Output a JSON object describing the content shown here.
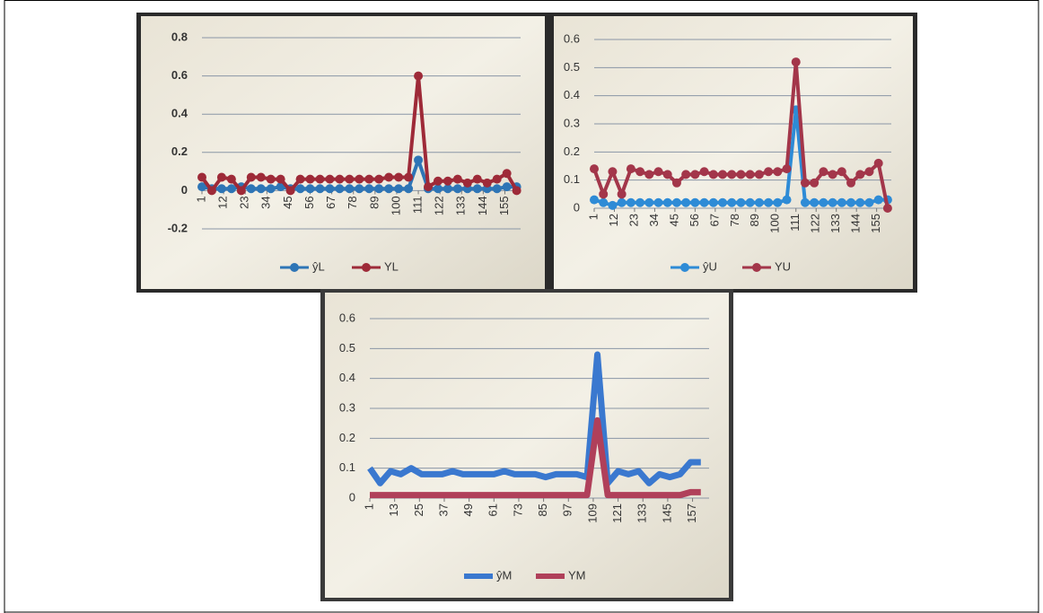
{
  "chart_data": [
    {
      "type": "line",
      "markers": true,
      "grid": true,
      "x": [
        1,
        6,
        11,
        16,
        21,
        26,
        31,
        36,
        41,
        46,
        51,
        56,
        61,
        66,
        71,
        76,
        81,
        86,
        91,
        96,
        101,
        106,
        111,
        116,
        121,
        126,
        131,
        136,
        141,
        146,
        151,
        156,
        161
      ],
      "xlim": [
        1,
        163
      ],
      "xticks": [
        1,
        12,
        23,
        34,
        45,
        56,
        67,
        78,
        89,
        100,
        111,
        122,
        133,
        144,
        155
      ],
      "ylim": [
        -0.2,
        0.8
      ],
      "yticks": [
        -0.2,
        0,
        0.2,
        0.4,
        0.6,
        0.8
      ],
      "series": [
        {
          "name": "ŷL",
          "color": "#2e75b6",
          "values": [
            0.02,
            0.01,
            0.01,
            0.01,
            0.02,
            0.01,
            0.01,
            0.01,
            0.02,
            0.01,
            0.01,
            0.01,
            0.01,
            0.01,
            0.01,
            0.01,
            0.01,
            0.01,
            0.01,
            0.01,
            0.01,
            0.01,
            0.16,
            0.01,
            0.01,
            0.01,
            0.01,
            0.01,
            0.01,
            0.01,
            0.01,
            0.02,
            0.02
          ]
        },
        {
          "name": "YL",
          "color": "#9e2a38",
          "values": [
            0.07,
            0.0,
            0.07,
            0.06,
            0.0,
            0.07,
            0.07,
            0.06,
            0.06,
            0.0,
            0.06,
            0.06,
            0.06,
            0.06,
            0.06,
            0.06,
            0.06,
            0.06,
            0.06,
            0.07,
            0.07,
            0.07,
            0.6,
            0.02,
            0.05,
            0.05,
            0.06,
            0.04,
            0.06,
            0.04,
            0.06,
            0.09,
            0.0
          ]
        }
      ]
    },
    {
      "type": "line",
      "markers": true,
      "grid": true,
      "x": [
        1,
        6,
        11,
        16,
        21,
        26,
        31,
        36,
        41,
        46,
        51,
        56,
        61,
        66,
        71,
        76,
        81,
        86,
        91,
        96,
        101,
        106,
        111,
        116,
        121,
        126,
        131,
        136,
        141,
        146,
        151,
        156,
        161
      ],
      "xlim": [
        1,
        163
      ],
      "xticks": [
        1,
        12,
        23,
        34,
        45,
        56,
        67,
        78,
        89,
        100,
        111,
        122,
        133,
        144,
        155
      ],
      "ylim": [
        0,
        0.6
      ],
      "yticks": [
        0,
        0.1,
        0.2,
        0.3,
        0.4,
        0.5,
        0.6
      ],
      "series": [
        {
          "name": "ŷU",
          "color": "#2e8bd6",
          "values": [
            0.03,
            0.02,
            0.01,
            0.02,
            0.02,
            0.02,
            0.02,
            0.02,
            0.02,
            0.02,
            0.02,
            0.02,
            0.02,
            0.02,
            0.02,
            0.02,
            0.02,
            0.02,
            0.02,
            0.02,
            0.02,
            0.03,
            0.35,
            0.02,
            0.02,
            0.02,
            0.02,
            0.02,
            0.02,
            0.02,
            0.02,
            0.03,
            0.03
          ]
        },
        {
          "name": "YU",
          "color": "#a3364a",
          "values": [
            0.14,
            0.05,
            0.13,
            0.05,
            0.14,
            0.13,
            0.12,
            0.13,
            0.12,
            0.09,
            0.12,
            0.12,
            0.13,
            0.12,
            0.12,
            0.12,
            0.12,
            0.12,
            0.12,
            0.13,
            0.13,
            0.14,
            0.52,
            0.09,
            0.09,
            0.13,
            0.12,
            0.13,
            0.09,
            0.12,
            0.13,
            0.16,
            0.0
          ]
        }
      ]
    },
    {
      "type": "line",
      "markers": false,
      "grid": true,
      "x": [
        1,
        6,
        11,
        16,
        21,
        26,
        31,
        36,
        41,
        46,
        51,
        56,
        61,
        66,
        71,
        76,
        81,
        86,
        91,
        96,
        101,
        106,
        111,
        116,
        121,
        126,
        131,
        136,
        141,
        146,
        151,
        156,
        161
      ],
      "xlim": [
        1,
        165
      ],
      "xticks": [
        1,
        13,
        25,
        37,
        49,
        61,
        73,
        85,
        97,
        109,
        121,
        133,
        145,
        157
      ],
      "ylim": [
        0,
        0.6
      ],
      "yticks": [
        0,
        0.1,
        0.2,
        0.3,
        0.4,
        0.5,
        0.6
      ],
      "series": [
        {
          "name": "ŷM",
          "color": "#3a78cf",
          "values": [
            0.1,
            0.05,
            0.09,
            0.08,
            0.1,
            0.08,
            0.08,
            0.08,
            0.09,
            0.08,
            0.08,
            0.08,
            0.08,
            0.09,
            0.08,
            0.08,
            0.08,
            0.07,
            0.08,
            0.08,
            0.08,
            0.07,
            0.48,
            0.05,
            0.09,
            0.08,
            0.09,
            0.05,
            0.08,
            0.07,
            0.08,
            0.12,
            0.12
          ]
        },
        {
          "name": "YM",
          "color": "#b0405a",
          "values": [
            0.01,
            0.01,
            0.01,
            0.01,
            0.01,
            0.01,
            0.01,
            0.01,
            0.01,
            0.01,
            0.01,
            0.01,
            0.01,
            0.01,
            0.01,
            0.01,
            0.01,
            0.01,
            0.01,
            0.01,
            0.01,
            0.01,
            0.26,
            0.01,
            0.01,
            0.01,
            0.01,
            0.01,
            0.01,
            0.01,
            0.01,
            0.02,
            0.02
          ]
        }
      ]
    }
  ]
}
